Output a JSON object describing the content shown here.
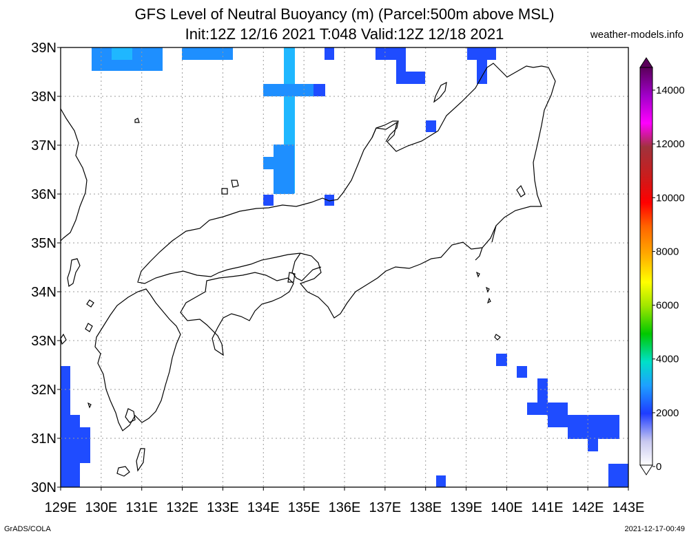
{
  "title": {
    "line1": "GFS Level of Neutral Buoyancy (m) (Parcel:500m above MSL)",
    "line2": "Init:12Z 12/16 2021 T:048 Valid:12Z 12/18 2021"
  },
  "site": "weather-models.info",
  "credit": "GrADS/COLA",
  "timestamp": "2021-12-17-00:49",
  "map": {
    "lon_range": [
      129,
      143
    ],
    "lat_range": [
      30,
      39
    ],
    "lon_labels": [
      "129E",
      "130E",
      "131E",
      "132E",
      "133E",
      "134E",
      "135E",
      "136E",
      "137E",
      "138E",
      "139E",
      "140E",
      "141E",
      "142E",
      "143E"
    ],
    "lat_labels": [
      "39N",
      "38N",
      "37N",
      "36N",
      "35N",
      "34N",
      "33N",
      "32N",
      "31N",
      "30N"
    ],
    "colorbar_labels": [
      "14000",
      "12000",
      "10000",
      "8000",
      "6000",
      "4000",
      "2000",
      "0"
    ],
    "colors": {
      "coastline": "#000000",
      "grid": "#9a9a9a",
      "lnb_2000": "#1f4cff",
      "lnb_2500": "#1e8fff",
      "lnb_3000": "#1fb7ff"
    }
  }
}
